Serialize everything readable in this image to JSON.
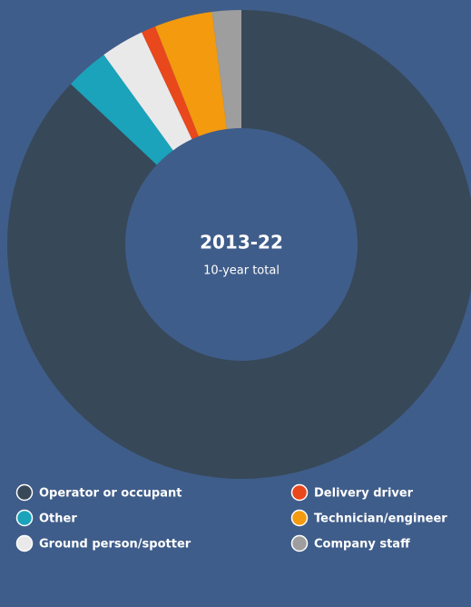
{
  "chart_data": {
    "type": "donut",
    "center_title": "2013-22",
    "center_subtitle": "10-year total",
    "series": [
      {
        "name": "Operator or occupant",
        "color": "#374858",
        "value": 87
      },
      {
        "name": "Other",
        "color": "#1aa3ba",
        "value": 3
      },
      {
        "name": "Ground person/spotter",
        "color": "#e9e9e9",
        "value": 3
      },
      {
        "name": "Delivery driver",
        "color": "#e9471c",
        "value": 1
      },
      {
        "name": "Technician/engineer",
        "color": "#f39a0e",
        "value": 4
      },
      {
        "name": "Company staff",
        "color": "#9e9e9e",
        "value": 2
      }
    ]
  }
}
